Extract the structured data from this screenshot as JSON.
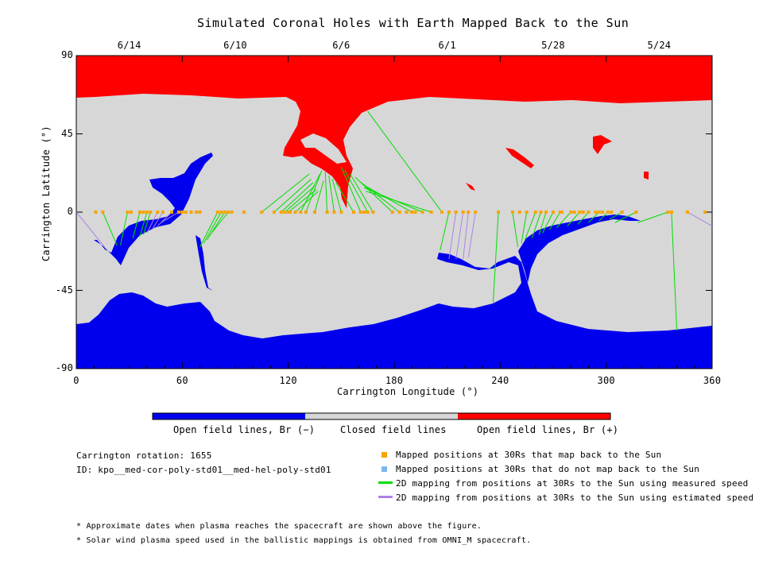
{
  "chart_data": {
    "type": "heatmap",
    "title": "Simulated Coronal Holes with Earth Mapped Back to the Sun",
    "xlabel": "Carrington Longitude (°)",
    "ylabel": "Carrington Latitude (°)",
    "xlim": [
      0,
      360
    ],
    "ylim": [
      -90,
      90
    ],
    "x_ticks": [
      "0",
      "60",
      "120",
      "180",
      "240",
      "300",
      "360"
    ],
    "y_ticks": [
      "-90",
      "-45",
      "0",
      "45",
      "90"
    ],
    "top_axis_dates": [
      {
        "label": "6/14",
        "lon": 30
      },
      {
        "label": "6/10",
        "lon": 90
      },
      {
        "label": "6/6",
        "lon": 150
      },
      {
        "label": "6/1",
        "lon": 210
      },
      {
        "label": "5/28",
        "lon": 270
      },
      {
        "label": "5/24",
        "lon": 330
      }
    ],
    "colorbar": [
      {
        "label": "Open field lines, Br (−)",
        "color": "#0000ee"
      },
      {
        "label": "Closed field lines",
        "color": "#d7d7d7"
      },
      {
        "label": "Open field lines, Br (+)",
        "color": "#ff0000"
      }
    ],
    "colors": {
      "negative": "#0000ee",
      "closed": "#d7d7d7",
      "positive": "#ff0000",
      "mapped": "#f5a500",
      "unmapped": "#7ab8f0",
      "measured": "#00dd00",
      "estimated": "#b080e8"
    },
    "mapped_points_lon": [
      11,
      15,
      29,
      31,
      36,
      38,
      40,
      42,
      46,
      49,
      54,
      58,
      60,
      62,
      65,
      68,
      70,
      80,
      82,
      84,
      86,
      88,
      95,
      105,
      112,
      116,
      118,
      120,
      121,
      124,
      127,
      130,
      135,
      142,
      146,
      150,
      157,
      161,
      163,
      165,
      168,
      179,
      183,
      187,
      190,
      192,
      196,
      201,
      207,
      211,
      215,
      219,
      222,
      226,
      239,
      247,
      251,
      255,
      260,
      263,
      266,
      270,
      274,
      275,
      280,
      282,
      285,
      287,
      290,
      294,
      296,
      298,
      301,
      303,
      309,
      317,
      335,
      337,
      346,
      356
    ],
    "measured_mappings": [
      {
        "from_lon": 15,
        "to": [
          23,
          -19
        ]
      },
      {
        "from_lon": 29,
        "to": [
          25,
          -19
        ]
      },
      {
        "from_lon": 36,
        "to": [
          32,
          -15
        ]
      },
      {
        "from_lon": 40,
        "to": [
          36,
          -14
        ]
      },
      {
        "from_lon": 42,
        "to": [
          38,
          -13
        ]
      },
      {
        "from_lon": 80,
        "to": [
          70,
          -20
        ]
      },
      {
        "from_lon": 82,
        "to": [
          72,
          -18
        ]
      },
      {
        "from_lon": 84,
        "to": [
          74,
          -16
        ]
      },
      {
        "from_lon": 86,
        "to": [
          75,
          -14
        ]
      },
      {
        "from_lon": 105,
        "to": [
          132,
          22
        ]
      },
      {
        "from_lon": 112,
        "to": [
          133,
          19
        ]
      },
      {
        "from_lon": 116,
        "to": [
          134,
          17
        ]
      },
      {
        "from_lon": 118,
        "to": [
          135,
          15
        ]
      },
      {
        "from_lon": 120,
        "to": [
          136,
          13
        ]
      },
      {
        "from_lon": 124,
        "to": [
          137,
          12
        ]
      },
      {
        "from_lon": 127,
        "to": [
          138,
          22
        ]
      },
      {
        "from_lon": 130,
        "to": [
          139,
          24
        ]
      },
      {
        "from_lon": 135,
        "to": [
          140,
          18
        ]
      },
      {
        "from_lon": 142,
        "to": [
          141,
          23
        ]
      },
      {
        "from_lon": 146,
        "to": [
          143,
          21
        ]
      },
      {
        "from_lon": 150,
        "to": [
          145,
          19
        ]
      },
      {
        "from_lon": 157,
        "to": [
          147,
          17
        ]
      },
      {
        "from_lon": 161,
        "to": [
          150,
          26
        ]
      },
      {
        "from_lon": 165,
        "to": [
          152,
          24
        ]
      },
      {
        "from_lon": 168,
        "to": [
          155,
          22
        ]
      },
      {
        "from_lon": 179,
        "to": [
          158,
          20
        ]
      },
      {
        "from_lon": 183,
        "to": [
          160,
          18
        ]
      },
      {
        "from_lon": 190,
        "to": [
          162,
          16
        ]
      },
      {
        "from_lon": 196,
        "to": [
          163,
          14
        ]
      },
      {
        "from_lon": 201,
        "to": [
          164,
          12
        ]
      },
      {
        "from_lon": 207,
        "to": [
          165,
          58
        ]
      },
      {
        "from_lon": 211,
        "to": [
          206,
          -22
        ]
      },
      {
        "from_lon": 239,
        "to": [
          236,
          -52
        ]
      },
      {
        "from_lon": 247,
        "to": [
          250,
          -20
        ]
      },
      {
        "from_lon": 255,
        "to": [
          252,
          -18
        ]
      },
      {
        "from_lon": 260,
        "to": [
          254,
          -16
        ]
      },
      {
        "from_lon": 263,
        "to": [
          258,
          -15
        ]
      },
      {
        "from_lon": 266,
        "to": [
          262,
          -13
        ]
      },
      {
        "from_lon": 270,
        "to": [
          264,
          -12
        ]
      },
      {
        "from_lon": 274,
        "to": [
          268,
          -10
        ]
      },
      {
        "from_lon": 280,
        "to": [
          272,
          -9
        ]
      },
      {
        "from_lon": 285,
        "to": [
          278,
          -8
        ]
      },
      {
        "from_lon": 290,
        "to": [
          284,
          -7
        ]
      },
      {
        "from_lon": 296,
        "to": [
          290,
          -6
        ]
      },
      {
        "from_lon": 301,
        "to": [
          296,
          -5
        ]
      },
      {
        "from_lon": 309,
        "to": [
          302,
          -4
        ]
      },
      {
        "from_lon": 317,
        "to": [
          305,
          -6
        ]
      },
      {
        "from_lon": 335,
        "to": [
          318,
          -6
        ]
      },
      {
        "from_lon": 337,
        "to": [
          340,
          -68
        ]
      }
    ],
    "estimated_mappings": [
      {
        "from_lon": 0,
        "to": [
          16,
          -20
        ]
      },
      {
        "from_lon": 46,
        "to": [
          40,
          -12
        ]
      },
      {
        "from_lon": 49,
        "to": [
          43,
          -10
        ]
      },
      {
        "from_lon": 54,
        "to": [
          46,
          -8
        ]
      },
      {
        "from_lon": 58,
        "to": [
          48,
          -6
        ]
      },
      {
        "from_lon": 215,
        "to": [
          211,
          -27
        ]
      },
      {
        "from_lon": 219,
        "to": [
          215,
          -27
        ]
      },
      {
        "from_lon": 222,
        "to": [
          219,
          -27
        ]
      },
      {
        "from_lon": 226,
        "to": [
          222,
          -26
        ]
      },
      {
        "from_lon": 346,
        "to": [
          360,
          -8
        ]
      }
    ]
  },
  "legend": {
    "mapped": "Mapped positions at 30Rs that map back to the Sun",
    "unmapped": "Mapped positions at 30Rs that do not map back to the Sun",
    "measured": "2D mapping from positions at 30Rs to the Sun using measured speed",
    "estimated": "2D mapping from positions at 30Rs to the Sun using estimated speed"
  },
  "info": {
    "rotation": "Carrington rotation: 1655",
    "id": "ID: kpo__med-cor-poly-std01__med-hel-poly-std01"
  },
  "notes": [
    "* Approximate dates when plasma reaches the spacecraft are shown above the figure.",
    "* Solar wind plasma speed used in the ballistic mappings is obtained from OMNI_M spacecraft."
  ]
}
